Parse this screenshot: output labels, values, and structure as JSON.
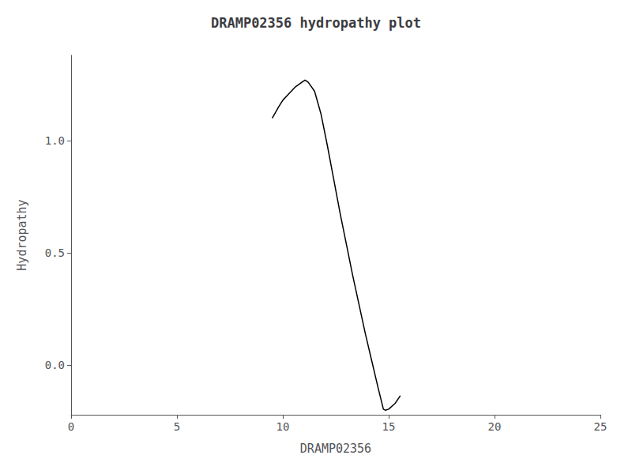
{
  "chart_data": {
    "type": "line",
    "title": "DRAMP02356 hydropathy plot",
    "xlabel": "DRAMP02356",
    "ylabel": "Hydropathy",
    "x": [
      9.5,
      9.8,
      10.0,
      10.3,
      10.6,
      10.9,
      11.05,
      11.2,
      11.5,
      11.8,
      12.1,
      12.4,
      12.7,
      13.0,
      13.3,
      13.6,
      13.9,
      14.2,
      14.5,
      14.75,
      14.85,
      15.0,
      15.3,
      15.55
    ],
    "values": [
      1.1,
      1.15,
      1.18,
      1.21,
      1.24,
      1.26,
      1.27,
      1.26,
      1.22,
      1.12,
      0.98,
      0.83,
      0.68,
      0.54,
      0.4,
      0.27,
      0.14,
      0.02,
      -0.1,
      -0.195,
      -0.2,
      -0.195,
      -0.17,
      -0.135
    ],
    "color": "#000000",
    "xlim": [
      0,
      25
    ],
    "xticks": [
      0,
      5,
      10,
      15,
      20,
      25
    ],
    "ylim": [
      -0.22,
      1.38
    ],
    "yticks": [
      {
        "value": 0.0,
        "label": "0.0"
      },
      0.5,
      {
        "value": 1.0,
        "label": "1.0"
      }
    ],
    "grid": false
  }
}
